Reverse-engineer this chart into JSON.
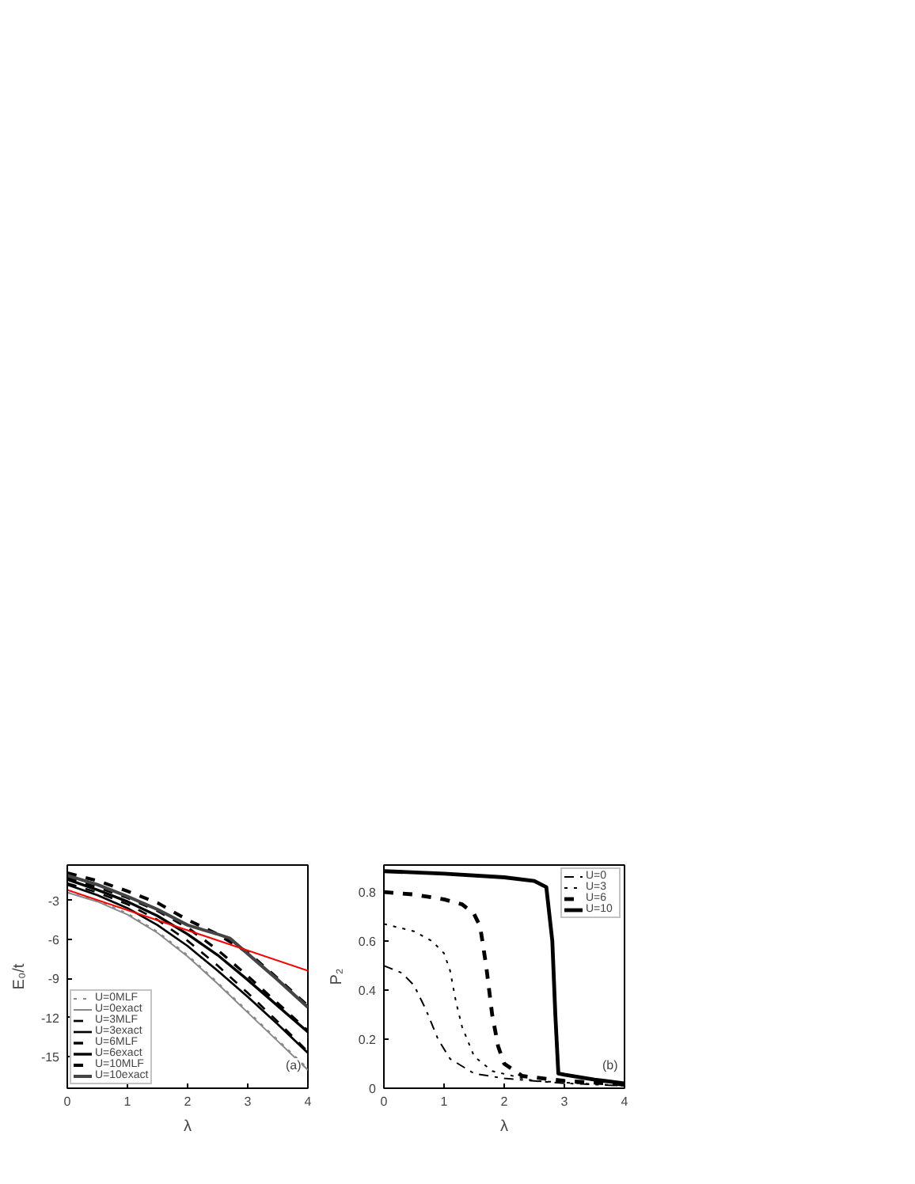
{
  "chart_data": [
    {
      "type": "line",
      "xlabel": "λ",
      "ylabel": "E₀/t",
      "xlim": [
        0,
        4
      ],
      "ylim": [
        -17.4,
        -0.3
      ],
      "xticks": [
        0,
        1,
        2,
        3,
        4
      ],
      "yticks": [
        -3,
        -6,
        -9,
        -12,
        -15
      ],
      "legend": "bottom left",
      "grid": false,
      "annotations": [
        "(a)"
      ],
      "x": [
        0,
        0.5,
        1,
        1.5,
        2,
        2.5,
        3,
        3.5,
        4
      ],
      "series": [
        {
          "name": "U=0MLF",
          "color": "#888888",
          "line_style": "dotted",
          "values": [
            -2.4,
            -3.0,
            -4.0,
            -5.4,
            -7.2,
            -9.3,
            -11.5,
            -13.7,
            -15.9
          ]
        },
        {
          "name": "U=0exact",
          "color": "#888888",
          "line_style": "solid",
          "values": [
            -2.4,
            -3.1,
            -4.1,
            -5.5,
            -7.3,
            -9.4,
            -11.6,
            -13.8,
            -16.0
          ]
        },
        {
          "name": "U=3MLF",
          "color": "#000000",
          "line_style": "dashed",
          "values": [
            -1.7,
            -2.4,
            -3.3,
            -4.5,
            -6.1,
            -8.0,
            -10.1,
            -12.3,
            -14.6
          ]
        },
        {
          "name": "U=3exact",
          "color": "#000000",
          "line_style": "solid",
          "values": [
            -1.8,
            -2.6,
            -3.6,
            -4.9,
            -6.5,
            -8.4,
            -10.4,
            -12.5,
            -14.7
          ]
        },
        {
          "name": "U=6MLF",
          "color": "#000000",
          "line_style": "dashed",
          "values": [
            -1.3,
            -2.0,
            -2.8,
            -3.8,
            -5.1,
            -6.8,
            -8.8,
            -10.9,
            -13.0
          ]
        },
        {
          "name": "U=6exact",
          "color": "#000000",
          "line_style": "solid",
          "values": [
            -1.4,
            -2.2,
            -3.1,
            -4.2,
            -5.6,
            -7.2,
            -9.1,
            -11.1,
            -13.1
          ]
        },
        {
          "name": "U=10MLF",
          "color": "#000000",
          "line_style": "dashed",
          "values": [
            -0.9,
            -1.5,
            -2.3,
            -3.2,
            -4.5,
            -5.6,
            -7.0,
            -9.0,
            -11.1
          ]
        },
        {
          "name": "U=10exact",
          "color": "#444444",
          "line_style": "solid",
          "x": [
            0,
            0.5,
            1,
            1.5,
            2,
            2.5,
            2.7,
            3,
            3.5,
            4
          ],
          "values": [
            -1.1,
            -1.8,
            -2.7,
            -3.7,
            -4.9,
            -5.6,
            -5.9,
            -7.1,
            -9.1,
            -11.2
          ]
        },
        {
          "color": "#ff0000",
          "line_style": "solid",
          "x": [
            0,
            4
          ],
          "values": [
            -2.2,
            -8.4
          ]
        }
      ]
    },
    {
      "type": "line",
      "xlabel": "λ",
      "ylabel": "P₂",
      "xlim": [
        0,
        4
      ],
      "ylim": [
        0,
        0.91
      ],
      "xticks": [
        0,
        1,
        2,
        3,
        4
      ],
      "yticks": [
        0,
        0.2,
        0.4,
        0.6,
        0.8
      ],
      "legend": "top right",
      "grid": false,
      "annotations": [
        "(b)"
      ],
      "series": [
        {
          "name": "U=0",
          "color": "#000000",
          "line_style": "dashdot",
          "x": [
            0,
            0.3,
            0.5,
            0.7,
            0.9,
            1.1,
            1.5,
            2,
            3,
            4
          ],
          "values": [
            0.5,
            0.47,
            0.42,
            0.32,
            0.2,
            0.12,
            0.06,
            0.04,
            0.02,
            0.01
          ]
        },
        {
          "name": "U=3",
          "color": "#000000",
          "line_style": "dotted",
          "x": [
            0,
            0.5,
            0.8,
            1,
            1.1,
            1.2,
            1.3,
            1.5,
            1.8,
            2.5,
            4
          ],
          "values": [
            0.67,
            0.64,
            0.6,
            0.55,
            0.48,
            0.35,
            0.25,
            0.13,
            0.07,
            0.03,
            0.01
          ]
        },
        {
          "name": "U=6",
          "color": "#000000",
          "line_style": "dashed",
          "x": [
            0,
            0.5,
            1,
            1.3,
            1.5,
            1.6,
            1.7,
            1.8,
            1.9,
            2,
            2.3,
            3,
            4
          ],
          "values": [
            0.8,
            0.79,
            0.77,
            0.75,
            0.71,
            0.66,
            0.5,
            0.3,
            0.17,
            0.1,
            0.05,
            0.03,
            0.015
          ]
        },
        {
          "name": "U=10",
          "color": "#000000",
          "line_style": "solid",
          "x": [
            0,
            1,
            2,
            2.5,
            2.7,
            2.8,
            2.85,
            2.9,
            3,
            3.5,
            4
          ],
          "values": [
            0.885,
            0.875,
            0.86,
            0.845,
            0.82,
            0.6,
            0.3,
            0.06,
            0.055,
            0.035,
            0.02
          ]
        }
      ]
    }
  ]
}
